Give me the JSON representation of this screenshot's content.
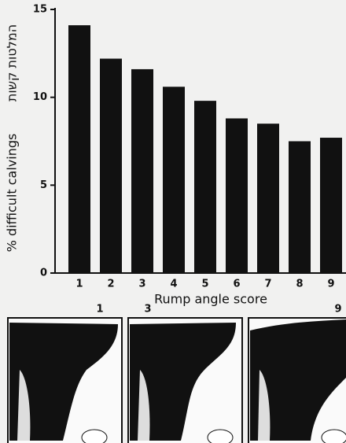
{
  "chart_data": {
    "type": "bar",
    "y_title": "% difficult calvings",
    "y_title_hebrew": "המלטות קשות",
    "x_title": "Rump angle score",
    "categories": [
      "1",
      "2",
      "3",
      "4",
      "5",
      "6",
      "7",
      "8",
      "9"
    ],
    "values": [
      14.1,
      12.2,
      11.6,
      10.6,
      9.8,
      8.8,
      8.5,
      7.5,
      7.7
    ],
    "color": "#111111",
    "ylim": [
      0,
      15
    ],
    "yticks": [
      0,
      5,
      10,
      15
    ]
  },
  "illustrations": {
    "labels": [
      "1",
      "3",
      "9"
    ]
  }
}
